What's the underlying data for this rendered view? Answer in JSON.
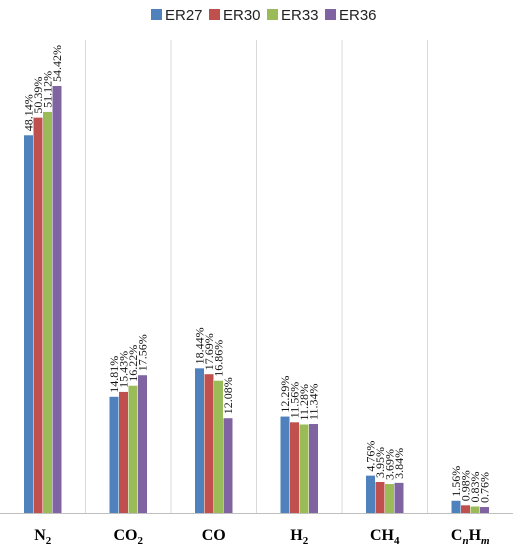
{
  "chart_data": {
    "type": "bar",
    "categories": [
      "N2",
      "CO2",
      "CO",
      "H2",
      "CH4",
      "CnHm"
    ],
    "category_labels": [
      {
        "base": "N",
        "sub": "2"
      },
      {
        "base": "CO",
        "sub": "2"
      },
      {
        "base": "CO",
        "sub": ""
      },
      {
        "base": "H",
        "sub": "2"
      },
      {
        "base": "CH",
        "sub": "4"
      },
      {
        "base": "C",
        "sub_n": "n",
        "mid": "H",
        "sub_m": "m"
      }
    ],
    "series": [
      {
        "name": "ER27",
        "color": "#4f81bd",
        "values": [
          48.14,
          14.81,
          18.44,
          12.29,
          4.76,
          1.56
        ],
        "labels": [
          "48.14%",
          "14.81%",
          "18.44%",
          "12.29%",
          "4.76%",
          "1.56%"
        ]
      },
      {
        "name": "ER30",
        "color": "#c0504d",
        "values": [
          50.39,
          15.43,
          17.69,
          11.56,
          3.95,
          0.98
        ],
        "labels": [
          "50.39%",
          "15.43%",
          "17.69%",
          "11.56%",
          "3.95%",
          "0.98%"
        ]
      },
      {
        "name": "ER33",
        "color": "#9bbb59",
        "values": [
          51.12,
          16.22,
          16.86,
          11.28,
          3.69,
          0.83
        ],
        "labels": [
          "51.12%",
          "16.22%",
          "16.86%",
          "11.28%",
          "3.69%",
          "0.83%"
        ]
      },
      {
        "name": "ER36",
        "color": "#8064a2",
        "values": [
          54.42,
          17.56,
          12.08,
          11.34,
          3.84,
          0.76
        ],
        "labels": [
          "54.42%",
          "17.56%",
          "12.08%",
          "11.34%",
          "3.84%",
          "0.76%"
        ]
      }
    ],
    "title": "",
    "xlabel": "",
    "ylabel": "",
    "ylim": [
      0,
      60
    ],
    "grid": "vertical separators between categories",
    "legend_position": "top-center"
  }
}
